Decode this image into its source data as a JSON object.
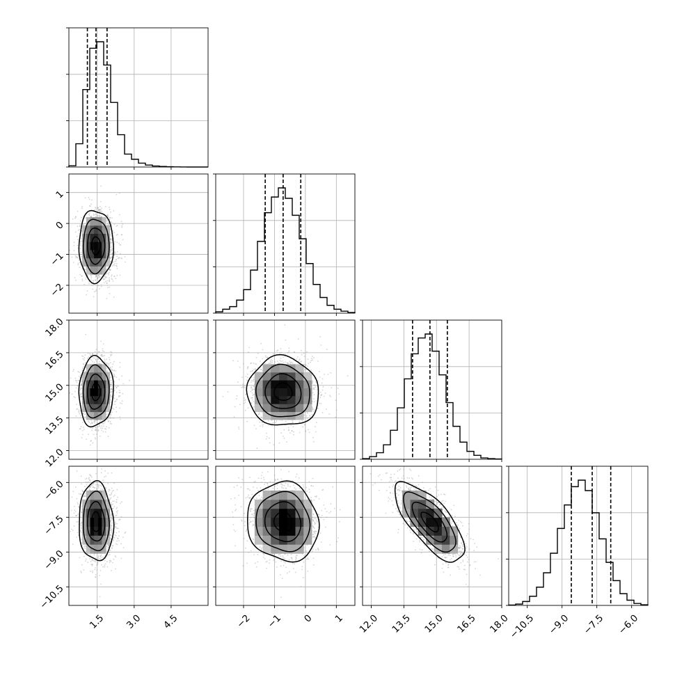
{
  "chart_data": {
    "type": "corner",
    "title": "",
    "params": [
      {
        "index": 0,
        "range": [
          0.35,
          6.0
        ],
        "ticks": [
          1.5,
          3.0,
          4.5
        ],
        "tick_labels": [
          "1.5",
          "3.0",
          "4.5"
        ],
        "quantiles": [
          1.1,
          1.45,
          1.9
        ],
        "mean": 1.45,
        "sd": 0.35
      },
      {
        "index": 1,
        "range": [
          -2.9,
          1.6
        ],
        "ticks": [
          -2,
          -1,
          0,
          1
        ],
        "tick_labels": [
          "−2",
          "−1",
          "0",
          "1"
        ],
        "quantiles": [
          -1.3,
          -0.72,
          -0.15
        ],
        "mean": -0.72,
        "sd": 0.58
      },
      {
        "index": 2,
        "range": [
          11.6,
          18.0
        ],
        "ticks": [
          12.0,
          13.5,
          15.0,
          16.5,
          18.0
        ],
        "tick_labels": [
          "12.0",
          "13.5",
          "15.0",
          "16.5",
          "18.0"
        ],
        "quantiles": [
          13.9,
          14.7,
          15.5
        ],
        "mean": 14.7,
        "sd": 0.8
      },
      {
        "index": 3,
        "range": [
          -11.3,
          -5.3
        ],
        "ticks": [
          -10.5,
          -9.0,
          -7.5,
          -6.0
        ],
        "tick_labels": [
          "−10.5",
          "−9.0",
          "−7.5",
          "−6.0"
        ],
        "quantiles": [
          -8.6,
          -7.7,
          -6.9
        ],
        "mean": -7.7,
        "sd": 0.85
      }
    ],
    "histograms": [
      {
        "param": 0,
        "counts": [
          1,
          18,
          60,
          92,
          97,
          79,
          50,
          25,
          10,
          6,
          3,
          1.5,
          0.8,
          0.4,
          0.2,
          0.1,
          0.05,
          0,
          0,
          0
        ]
      },
      {
        "param": 1,
        "counts": [
          1,
          3,
          5,
          10,
          18,
          33,
          55,
          77,
          89,
          96,
          88,
          75,
          57,
          38,
          22,
          12,
          6,
          3,
          1.5,
          0.5
        ]
      },
      {
        "param": 2,
        "counts": [
          0.5,
          2,
          5,
          11,
          22,
          39,
          61,
          80,
          92,
          95,
          82,
          64,
          43,
          25,
          13,
          6,
          3,
          1,
          0.5,
          0.2
        ]
      },
      {
        "param": 3,
        "counts": [
          0.3,
          1,
          3,
          7,
          14,
          25,
          40,
          59,
          77,
          91,
          96,
          88,
          71,
          51,
          33,
          19,
          9,
          4,
          1.5,
          0.5
        ]
      }
    ],
    "pairs": [
      {
        "x": 0,
        "y": 1,
        "correlation": 0.0
      },
      {
        "x": 0,
        "y": 2,
        "correlation": 0.05
      },
      {
        "x": 1,
        "y": 2,
        "correlation": -0.05
      },
      {
        "x": 0,
        "y": 3,
        "correlation": -0.05
      },
      {
        "x": 1,
        "y": 3,
        "correlation": -0.08
      },
      {
        "x": 2,
        "y": 3,
        "correlation": -0.72
      }
    ],
    "contour_levels": [
      0.5,
      1.0,
      1.5,
      2.0
    ],
    "grid": true,
    "xlabel": "",
    "ylabel": ""
  }
}
